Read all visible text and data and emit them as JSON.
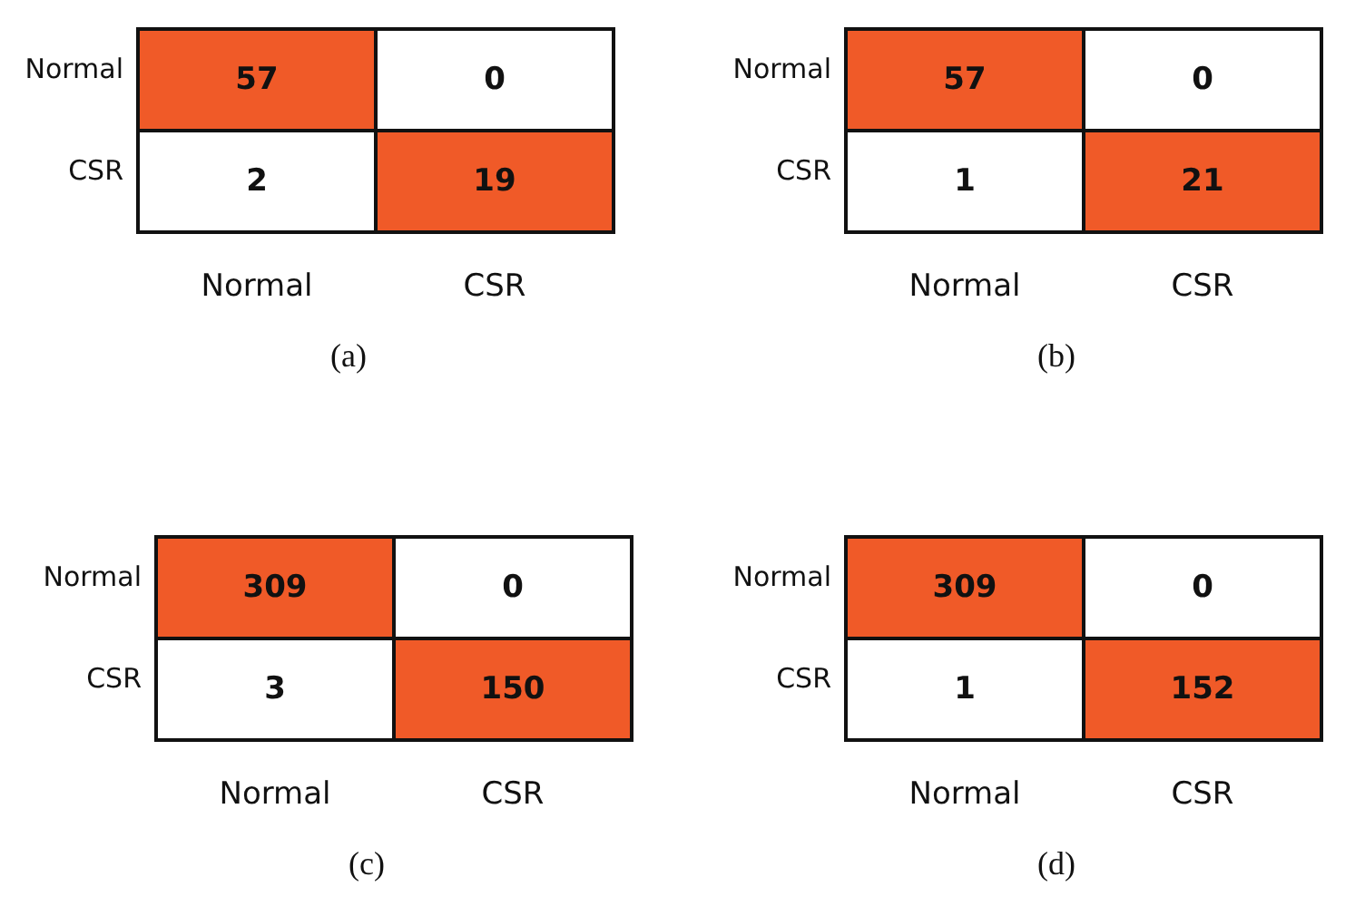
{
  "chart_data": [
    {
      "type": "heatmap",
      "data_labels": true,
      "title": "(a)",
      "categories": [
        "Normal",
        "CSR"
      ],
      "y_categories": [
        "Normal",
        "CSR"
      ],
      "cells": [
        [
          57,
          0
        ],
        [
          2,
          19
        ]
      ],
      "colors": [
        "#f05a28",
        "#ffffff",
        "#ffffff",
        "#f05a28"
      ]
    },
    {
      "type": "heatmap",
      "data_labels": true,
      "title": "(b)",
      "categories": [
        "Normal",
        "CSR"
      ],
      "y_categories": [
        "Normal",
        "CSR"
      ],
      "cells": [
        [
          57,
          0
        ],
        [
          1,
          21
        ]
      ],
      "colors": [
        "#f05a28",
        "#ffffff",
        "#ffffff",
        "#f05a28"
      ]
    },
    {
      "type": "heatmap",
      "data_labels": true,
      "title": "(c)",
      "categories": [
        "Normal",
        "CSR"
      ],
      "y_categories": [
        "Normal",
        "CSR"
      ],
      "cells": [
        [
          309,
          0
        ],
        [
          3,
          150
        ]
      ],
      "colors": [
        "#f05a28",
        "#ffffff",
        "#ffffff",
        "#f05a28"
      ]
    },
    {
      "type": "heatmap",
      "data_labels": true,
      "title": "(d)",
      "categories": [
        "Normal",
        "CSR"
      ],
      "y_categories": [
        "Normal",
        "CSR"
      ],
      "cells": [
        [
          309,
          0
        ],
        [
          1,
          152
        ]
      ],
      "colors": [
        "#f05a28",
        "#ffffff",
        "#ffffff",
        "#f05a28"
      ]
    }
  ]
}
